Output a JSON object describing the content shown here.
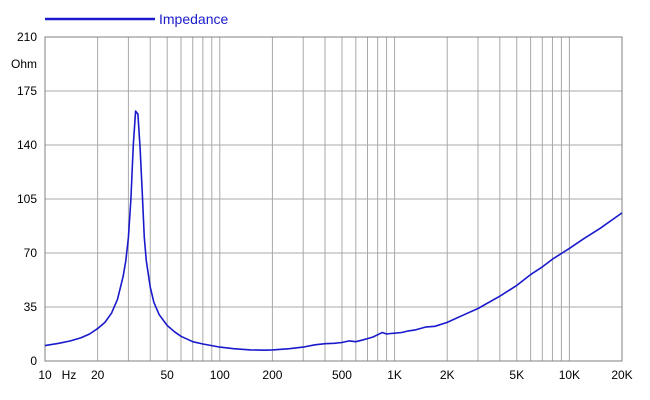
{
  "chart_data": {
    "type": "line",
    "title": "",
    "xlabel": "Hz",
    "ylabel": "Ohm",
    "x_scale": "log",
    "xlim": [
      10,
      20000
    ],
    "ylim": [
      0,
      210
    ],
    "grid": true,
    "legend_position": "top-left",
    "x_ticks": [
      {
        "value": 10,
        "label": "10"
      },
      {
        "value": 20,
        "label": "20"
      },
      {
        "value": 50,
        "label": "50"
      },
      {
        "value": 100,
        "label": "100"
      },
      {
        "value": 200,
        "label": "200"
      },
      {
        "value": 500,
        "label": "500"
      },
      {
        "value": 1000,
        "label": "1K"
      },
      {
        "value": 2000,
        "label": "2K"
      },
      {
        "value": 5000,
        "label": "5K"
      },
      {
        "value": 10000,
        "label": "10K"
      },
      {
        "value": 20000,
        "label": "20K"
      }
    ],
    "y_ticks": [
      0,
      35,
      70,
      105,
      140,
      175,
      210
    ],
    "series": [
      {
        "name": "Impedance",
        "color": "#1a1acc",
        "x": [
          10,
          12,
          14,
          16,
          18,
          20,
          22,
          24,
          26,
          28,
          29,
          30,
          31,
          32,
          33,
          34,
          35,
          36,
          37,
          38,
          40,
          42,
          45,
          50,
          55,
          60,
          70,
          80,
          90,
          100,
          120,
          150,
          180,
          200,
          250,
          300,
          350,
          400,
          450,
          500,
          550,
          600,
          650,
          700,
          750,
          800,
          850,
          900,
          950,
          1000,
          1100,
          1200,
          1300,
          1500,
          1700,
          2000,
          2500,
          3000,
          4000,
          5000,
          6000,
          7000,
          8000,
          10000,
          12000,
          15000,
          20000
        ],
        "y": [
          10,
          11.5,
          13,
          15,
          17.5,
          21,
          25,
          31,
          40,
          55,
          65,
          80,
          105,
          140,
          162,
          160,
          138,
          110,
          80,
          65,
          48,
          38,
          30,
          23,
          19,
          16,
          12.5,
          11,
          10,
          9,
          8,
          7.2,
          7,
          7.2,
          8,
          9,
          10.5,
          11.2,
          11.5,
          12,
          13,
          12.5,
          13.5,
          14.5,
          15.5,
          17,
          18.5,
          17.5,
          17.8,
          18,
          18.5,
          19.5,
          20,
          22,
          22.5,
          25,
          30,
          34,
          42,
          49,
          56,
          61,
          66,
          73,
          79,
          86,
          96
        ]
      }
    ]
  }
}
